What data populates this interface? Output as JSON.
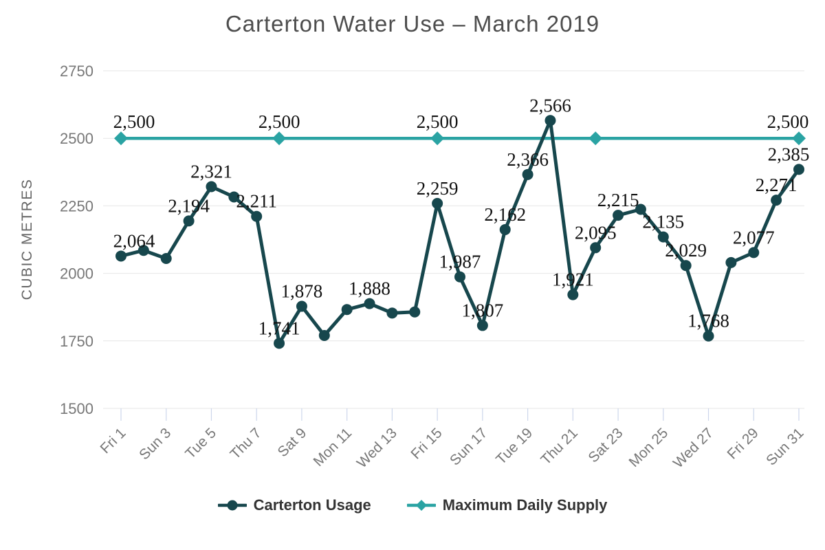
{
  "title": "Carterton Water Use – March 2019",
  "y_axis_title": "CUBIC METRES",
  "legend": {
    "items": [
      {
        "label": "Carterton Usage",
        "marker": "circle",
        "color": "#17474d"
      },
      {
        "label": "Maximum Daily Supply",
        "marker": "diamond",
        "color": "#2aa3a3"
      }
    ]
  },
  "colors": {
    "usage_series": "#17474d",
    "supply_series": "#2aa3a3",
    "gridline": "#e6e6e6",
    "tick_mark": "#ccd6eb",
    "axis_label": "#777777",
    "data_label": "#111111",
    "title": "#4d4d4d"
  },
  "chart_data": {
    "type": "line",
    "title": "Carterton Water Use – March 2019",
    "xlabel": "",
    "ylabel": "CUBIC METRES",
    "ylim": [
      1500,
      2750
    ],
    "yticks": [
      1500,
      1750,
      2000,
      2250,
      2500,
      2750
    ],
    "grid": "horizontal",
    "legend_position": "bottom",
    "x_axis": {
      "tick_days": [
        1,
        3,
        5,
        7,
        9,
        11,
        13,
        15,
        17,
        19,
        21,
        23,
        25,
        27,
        29,
        31
      ],
      "tick_labels": [
        "Fri 1",
        "Sun 3",
        "Tue 5",
        "Thu 7",
        "Sat 9",
        "Mon 11",
        "Wed 13",
        "Fri 15",
        "Sun 17",
        "Tue 19",
        "Thu 21",
        "Sat 23",
        "Mon 25",
        "Wed 27",
        "Fri 29",
        "Sun 31"
      ]
    },
    "series": [
      {
        "name": "Carterton Usage",
        "type": "line",
        "marker": "circle",
        "color": "#17474d",
        "days": [
          1,
          2,
          3,
          4,
          5,
          6,
          7,
          8,
          9,
          10,
          11,
          12,
          13,
          14,
          15,
          16,
          17,
          18,
          19,
          20,
          21,
          22,
          23,
          24,
          25,
          26,
          27,
          28,
          29,
          30,
          31
        ],
        "values": [
          2064,
          2085,
          2055,
          2194,
          2321,
          2283,
          2211,
          1741,
          1878,
          1770,
          1866,
          1888,
          1853,
          1857,
          2259,
          1987,
          1807,
          2162,
          2366,
          2566,
          1921,
          2095,
          2215,
          2237,
          2135,
          2029,
          1768,
          2040,
          2077,
          2271,
          2385
        ],
        "label_days": [
          1,
          4,
          5,
          7,
          8,
          9,
          12,
          15,
          16,
          17,
          18,
          19,
          20,
          21,
          22,
          23,
          25,
          26,
          27,
          29,
          30,
          31
        ],
        "estimated_days": [
          2,
          3,
          6,
          10,
          11,
          13,
          14,
          24,
          28
        ]
      },
      {
        "name": "Maximum Daily Supply",
        "type": "line",
        "marker": "diamond",
        "color": "#2aa3a3",
        "constant_value": 2500,
        "marker_days": [
          1,
          8,
          15,
          22,
          31
        ],
        "label_days": [
          1,
          8,
          15,
          31
        ]
      }
    ]
  }
}
